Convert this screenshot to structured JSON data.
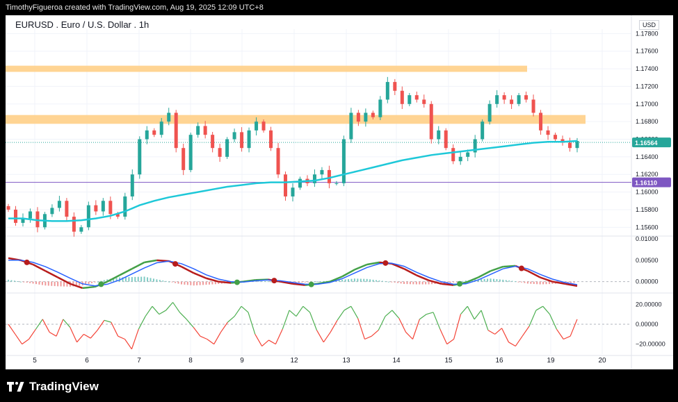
{
  "header": {
    "caption": "TimothyFigueroa created with TradingView.com, Aug 19, 2025 12:09 UTC+8"
  },
  "footer": {
    "brand": "TradingView"
  },
  "chart_data": {
    "type": "candlestick",
    "title": "EURUSD . Euro / U.S. Dollar . 1h",
    "currency": "USD",
    "price_axis": {
      "min": 1.155,
      "max": 1.1785,
      "ticks": [
        "1.17800",
        "1.17600",
        "1.17400",
        "1.17200",
        "1.17000",
        "1.16800",
        "1.16600",
        "1.16400",
        "1.16200",
        "1.16000",
        "1.15800",
        "1.15600"
      ]
    },
    "x_axis": {
      "labels": [
        "5",
        "6",
        "7",
        "8",
        "9",
        "12",
        "13",
        "14",
        "15",
        "16",
        "19",
        "20"
      ]
    },
    "last_price": {
      "value": 1.16564,
      "label": "1.16564",
      "color": "#26a69a"
    },
    "horizontal_line": {
      "value": 1.1611,
      "label": "1.16110",
      "color": "#7e57c2"
    },
    "zones": [
      {
        "low": 1.17365,
        "high": 1.17435,
        "color": "#ffcc80"
      },
      {
        "low": 1.16775,
        "high": 1.16875,
        "color": "#ffcc80"
      }
    ],
    "colors": {
      "up": "#26a69a",
      "down": "#ef5350",
      "ma": "#1ec8d8",
      "grid": "#f0f3fa"
    },
    "close_path": [
      1.158,
      1.1565,
      1.157,
      1.1578,
      1.156,
      1.1575,
      1.1582,
      1.159,
      1.1572,
      1.1555,
      1.156,
      1.1585,
      1.1578,
      1.159,
      1.1575,
      1.1572,
      1.1595,
      1.162,
      1.166,
      1.167,
      1.1665,
      1.168,
      1.169,
      1.165,
      1.1625,
      1.1665,
      1.1675,
      1.1665,
      1.165,
      1.164,
      1.166,
      1.1668,
      1.165,
      1.167,
      1.168,
      1.167,
      1.165,
      1.162,
      1.1595,
      1.1605,
      1.1615,
      1.161,
      1.162,
      1.1625,
      1.161,
      1.161,
      1.166,
      1.169,
      1.168,
      1.169,
      1.1685,
      1.1705,
      1.1725,
      1.1715,
      1.17,
      1.171,
      1.1705,
      1.17,
      1.166,
      1.167,
      1.165,
      1.1635,
      1.164,
      1.1645,
      1.166,
      1.168,
      1.17,
      1.171,
      1.1705,
      1.17,
      1.171,
      1.1705,
      1.169,
      1.167,
      1.1665,
      1.166,
      1.1656,
      1.165,
      1.1658
    ],
    "ma_path": [
      1.157,
      1.157,
      1.1568,
      1.1567,
      1.1567,
      1.1568,
      1.157,
      1.1573,
      1.1578,
      1.1585,
      1.159,
      1.1594,
      1.1597,
      1.16,
      1.1603,
      1.1606,
      1.1608,
      1.161,
      1.1611,
      1.1611,
      1.1612,
      1.1613,
      1.1616,
      1.162,
      1.1624,
      1.1628,
      1.1632,
      1.1636,
      1.1639,
      1.1642,
      1.1644,
      1.1646,
      1.1648,
      1.165,
      1.1652,
      1.1654,
      1.1656,
      1.1657,
      1.1657,
      1.1658
    ],
    "macd": {
      "axis_ticks": [
        "0.01000",
        "0.00500",
        "0.00000"
      ],
      "range": [
        -0.002,
        0.01
      ],
      "macd_line": [
        0.0055,
        0.005,
        0.004,
        0.0025,
        0.001,
        -0.0005,
        -0.0015,
        -0.0012,
        0.0,
        0.0015,
        0.003,
        0.0045,
        0.005,
        0.0048,
        0.0035,
        0.002,
        0.0008,
        0.0,
        -0.0003,
        0.0,
        0.0004,
        0.0005,
        0.0,
        -0.0005,
        -0.0008,
        -0.0005,
        0.0,
        0.0012,
        0.0028,
        0.004,
        0.0045,
        0.0042,
        0.003,
        0.0015,
        0.0003,
        -0.0005,
        -0.0008,
        -0.0002,
        0.001,
        0.0025,
        0.0035,
        0.0037,
        0.0025,
        0.001,
        0.0,
        -0.0005,
        -0.001
      ],
      "signal_line": [
        0.005,
        0.005,
        0.0045,
        0.0035,
        0.0022,
        0.0008,
        -0.0005,
        -0.001,
        -0.0006,
        0.0004,
        0.0018,
        0.0032,
        0.0044,
        0.0048,
        0.0042,
        0.003,
        0.0016,
        0.0006,
        0.0,
        -0.0001,
        0.0002,
        0.0004,
        0.0002,
        -0.0002,
        -0.0006,
        -0.0006,
        -0.0002,
        0.0007,
        0.002,
        0.0033,
        0.0042,
        0.0043,
        0.0036,
        0.0022,
        0.001,
        0.0,
        -0.0006,
        -0.0005,
        0.0004,
        0.0017,
        0.003,
        0.0036,
        0.003,
        0.0017,
        0.0006,
        -0.0002,
        -0.0007
      ]
    },
    "oscillator": {
      "axis_ticks": [
        "20.00000",
        "0.00000",
        "−20.00000"
      ],
      "range": [
        -30,
        30
      ],
      "values": [
        0,
        -10,
        -20,
        -15,
        -5,
        5,
        -8,
        -12,
        5,
        -3,
        -18,
        -10,
        -14,
        -6,
        4,
        2,
        -12,
        -15,
        -25,
        -5,
        8,
        18,
        10,
        14,
        22,
        12,
        5,
        -3,
        -12,
        -15,
        -20,
        -8,
        2,
        8,
        18,
        12,
        -10,
        -22,
        -16,
        -20,
        -5,
        14,
        8,
        18,
        12,
        -6,
        -18,
        -8,
        4,
        14,
        18,
        6,
        -15,
        -12,
        -6,
        8,
        14,
        6,
        -8,
        -15,
        5,
        10,
        12,
        -5,
        -20,
        -15,
        10,
        18,
        5,
        14,
        -6,
        -10,
        -4,
        -18,
        -22,
        -12,
        -2,
        14,
        18,
        10,
        -5,
        -15,
        -12,
        5
      ]
    }
  }
}
